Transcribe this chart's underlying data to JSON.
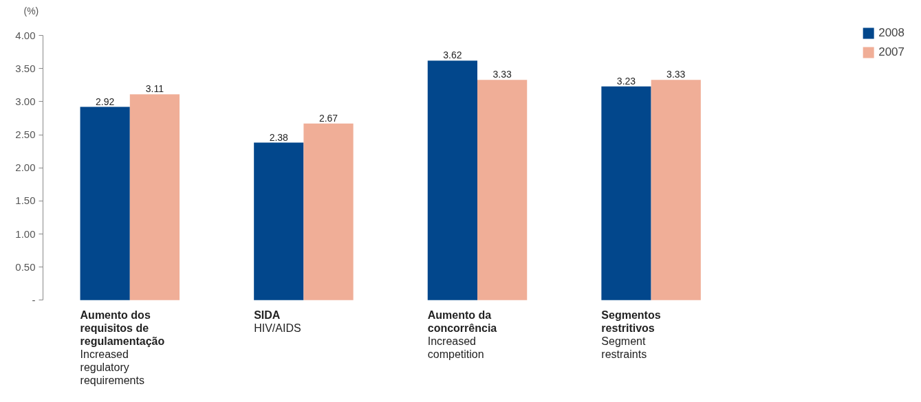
{
  "chart_data": {
    "type": "bar",
    "ylabel": "(%)",
    "categories": [
      "Aumento dos requisitos de regulamentação\nIncreased regulatory requirements",
      "SIDA\nHIV/AIDS",
      "Aumento da concorrência\nIncreased competition",
      "Segmentos restritivos\nSegment restraints"
    ],
    "series": [
      {
        "name": "2008",
        "color": "#02478c",
        "values": [
          2.92,
          2.38,
          3.62,
          3.23
        ]
      },
      {
        "name": "2007",
        "color": "#f0ae97",
        "values": [
          3.11,
          2.67,
          3.33,
          3.33
        ]
      }
    ],
    "ylim": [
      0,
      4
    ],
    "yticks": [
      {
        "value": 0,
        "label": "-"
      },
      {
        "value": 0.5,
        "label": "0.50"
      },
      {
        "value": 1,
        "label": "1.00"
      },
      {
        "value": 1.5,
        "label": "1.50"
      },
      {
        "value": 2,
        "label": "2.00"
      },
      {
        "value": 2.5,
        "label": "2.50"
      },
      {
        "value": 3,
        "label": "3.00"
      },
      {
        "value": 3.5,
        "label": "3.50"
      },
      {
        "value": 4,
        "label": "4.00"
      }
    ],
    "data_labels": true,
    "legend": "top right",
    "grid": false
  }
}
